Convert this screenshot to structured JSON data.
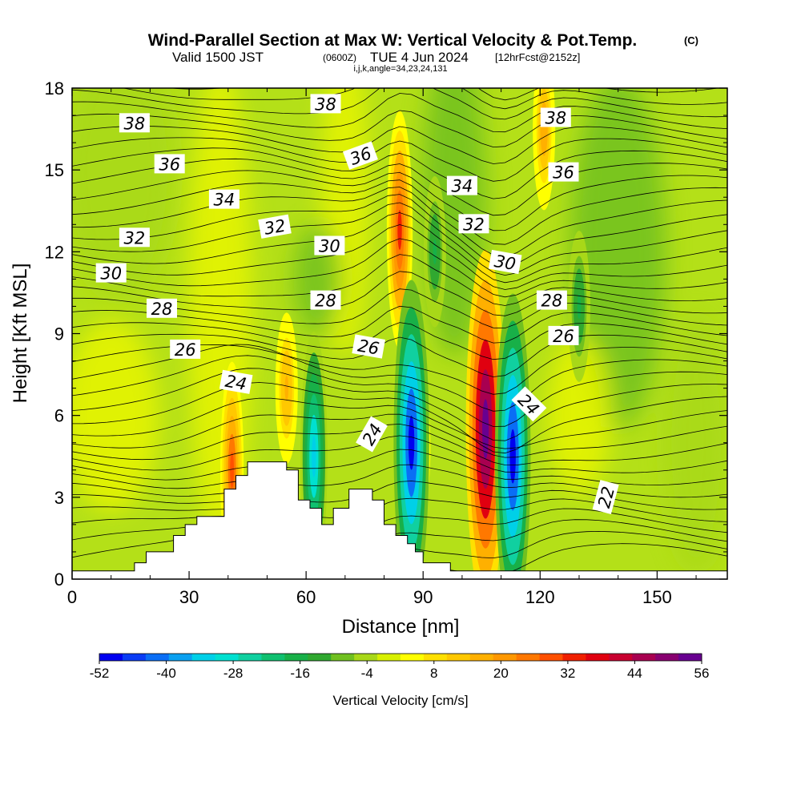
{
  "header": {
    "title": "Wind-Parallel Section at Max W: Vertical Velocity & Pot.Temp.",
    "copyright": "(C)",
    "valid_prefix": "Valid 1500 JST",
    "valid_utc": "(0600Z)",
    "valid_date": "TUE 4 Jun 2024",
    "forecast": "[12hrFcst@2152z]",
    "grid_info": "i,j,k,angle=34,23,24,131"
  },
  "colorbar": {
    "label": "Vertical Velocity [cm/s]",
    "tick_labels": [
      "-52",
      "-40",
      "-28",
      "-16",
      "-4",
      "8",
      "20",
      "32",
      "44",
      "56"
    ],
    "colors": [
      "#0000f0",
      "#0a3cf5",
      "#0a6ef5",
      "#0aa0f0",
      "#00d0e8",
      "#00e0d0",
      "#10d0a0",
      "#10c070",
      "#18b048",
      "#30a830",
      "#70c020",
      "#a8d818",
      "#d8f000",
      "#ffff00",
      "#ffe000",
      "#ffc800",
      "#ffb000",
      "#ff9800",
      "#ff7800",
      "#ff5000",
      "#f02000",
      "#e00010",
      "#c80030",
      "#a80050",
      "#880070",
      "#680090"
    ]
  },
  "chart_data": {
    "type": "contour",
    "xlabel": "Distance [nm]",
    "ylabel": "Height [Kft MSL]",
    "xlim": [
      0,
      168
    ],
    "ylim": [
      0,
      18
    ],
    "x_ticks": [
      0,
      30,
      60,
      90,
      120,
      150
    ],
    "y_ticks": [
      0,
      3,
      6,
      9,
      12,
      15,
      18
    ],
    "x_tick_labels": [
      "0",
      "30",
      "60",
      "90",
      "120",
      "150"
    ],
    "y_tick_labels": [
      "0",
      "3",
      "6",
      "9",
      "12",
      "15",
      "18"
    ],
    "fill_field": "Vertical Velocity [cm/s]",
    "fill_range": [
      -52,
      56
    ],
    "contour_field": "Potential Temperature",
    "features": [
      {
        "kind": "updraft",
        "x": 84,
        "y": 12.8,
        "w": 32
      },
      {
        "kind": "updraft",
        "x": 106,
        "y": 5.5,
        "w": 54
      },
      {
        "kind": "updraft",
        "x": 89,
        "y": 4.8,
        "w": 14
      },
      {
        "kind": "updraft",
        "x": 41,
        "y": 4.0,
        "w": 28
      },
      {
        "kind": "updraft",
        "x": 55,
        "y": 7.0,
        "w": 16
      },
      {
        "kind": "updraft",
        "x": 121,
        "y": 16.5,
        "w": 18
      },
      {
        "kind": "downdraft",
        "x": 87,
        "y": 5.0,
        "w": -48
      },
      {
        "kind": "downdraft",
        "x": 113,
        "y": 4.5,
        "w": -48
      },
      {
        "kind": "downdraft",
        "x": 62,
        "y": 4.5,
        "w": -34
      },
      {
        "kind": "downdraft",
        "x": 93,
        "y": 12.0,
        "w": -16
      },
      {
        "kind": "downdraft",
        "x": 130,
        "y": 10.0,
        "w": -16
      }
    ],
    "contour_labels": [
      {
        "text": "38",
        "x": 16,
        "y": 16.7,
        "rot": 0
      },
      {
        "text": "38",
        "x": 65,
        "y": 17.4,
        "rot": 0
      },
      {
        "text": "38",
        "x": 124,
        "y": 16.9,
        "rot": 0
      },
      {
        "text": "36",
        "x": 25,
        "y": 15.2,
        "rot": 0
      },
      {
        "text": "36",
        "x": 74,
        "y": 15.5,
        "rot": -20
      },
      {
        "text": "36",
        "x": 126,
        "y": 14.9,
        "rot": 0
      },
      {
        "text": "34",
        "x": 39,
        "y": 13.9,
        "rot": 0
      },
      {
        "text": "34",
        "x": 100,
        "y": 14.4,
        "rot": 0
      },
      {
        "text": "32",
        "x": 16,
        "y": 12.5,
        "rot": 0
      },
      {
        "text": "32",
        "x": 52,
        "y": 12.9,
        "rot": -10
      },
      {
        "text": "32",
        "x": 103,
        "y": 13.0,
        "rot": 0
      },
      {
        "text": "30",
        "x": 10,
        "y": 11.2,
        "rot": 0
      },
      {
        "text": "30",
        "x": 66,
        "y": 12.2,
        "rot": 0
      },
      {
        "text": "30",
        "x": 111,
        "y": 11.6,
        "rot": 10
      },
      {
        "text": "28",
        "x": 23,
        "y": 9.9,
        "rot": 0
      },
      {
        "text": "28",
        "x": 65,
        "y": 10.2,
        "rot": 0
      },
      {
        "text": "28",
        "x": 123,
        "y": 10.2,
        "rot": 0
      },
      {
        "text": "26",
        "x": 29,
        "y": 8.4,
        "rot": 0
      },
      {
        "text": "26",
        "x": 76,
        "y": 8.5,
        "rot": 10
      },
      {
        "text": "26",
        "x": 126,
        "y": 8.9,
        "rot": 0
      },
      {
        "text": "24",
        "x": 42,
        "y": 7.2,
        "rot": 10
      },
      {
        "text": "24",
        "x": 77,
        "y": 5.3,
        "rot": -60
      },
      {
        "text": "24",
        "x": 117,
        "y": 6.4,
        "rot": 45
      },
      {
        "text": "22",
        "x": 137,
        "y": 3.0,
        "rot": -75
      }
    ],
    "terrain": [
      [
        0,
        0.3
      ],
      [
        16,
        0.3
      ],
      [
        16,
        0.6
      ],
      [
        19,
        0.6
      ],
      [
        19,
        1.0
      ],
      [
        26,
        1.0
      ],
      [
        26,
        1.6
      ],
      [
        29,
        1.6
      ],
      [
        29,
        2.0
      ],
      [
        32,
        2.0
      ],
      [
        32,
        2.3
      ],
      [
        39,
        2.3
      ],
      [
        39,
        3.3
      ],
      [
        42,
        3.3
      ],
      [
        42,
        3.8
      ],
      [
        45,
        3.8
      ],
      [
        45,
        4.3
      ],
      [
        55,
        4.3
      ],
      [
        55,
        4.0
      ],
      [
        58,
        4.0
      ],
      [
        58,
        3.6
      ],
      [
        58,
        2.9
      ],
      [
        61,
        2.9
      ],
      [
        61,
        2.6
      ],
      [
        64,
        2.6
      ],
      [
        64,
        2.0
      ],
      [
        67,
        2.0
      ],
      [
        67,
        2.6
      ],
      [
        71,
        2.6
      ],
      [
        71,
        3.3
      ],
      [
        77,
        3.3
      ],
      [
        77,
        2.9
      ],
      [
        80,
        2.9
      ],
      [
        80,
        2.0
      ],
      [
        83,
        2.0
      ],
      [
        83,
        1.6
      ],
      [
        86,
        1.6
      ],
      [
        86,
        1.3
      ],
      [
        88,
        1.3
      ],
      [
        88,
        1.0
      ],
      [
        90,
        1.0
      ],
      [
        90,
        0.6
      ],
      [
        97,
        0.6
      ],
      [
        97,
        0.3
      ],
      [
        168,
        0.3
      ],
      [
        168,
        0
      ]
    ]
  }
}
